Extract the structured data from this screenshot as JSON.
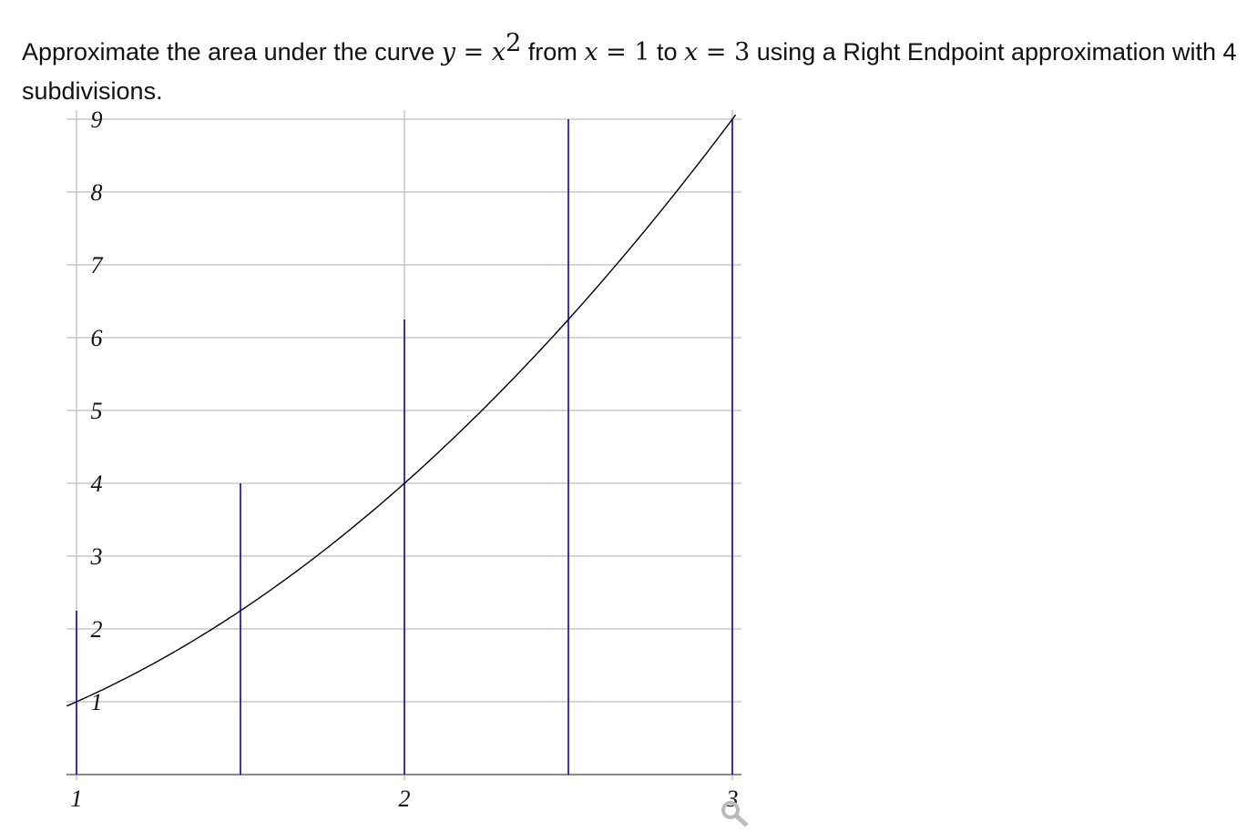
{
  "question": {
    "prefix": "Approximate the area under the curve ",
    "var_y": "y",
    "eq1": " = ",
    "var_x": "x",
    "exp": "2",
    "from": " from ",
    "x1": "x",
    "eq2": " = ",
    "a": "1",
    "to": " to ",
    "x2": "x",
    "eq3": " = ",
    "b": "3",
    "suffix": " using a Right Endpoint approximation with 4 subdivisions."
  },
  "chart_data": {
    "type": "line",
    "function": "y = x^2",
    "xlim": [
      1,
      3
    ],
    "ylim": [
      0,
      9
    ],
    "grid": true,
    "x_ticks": [
      "1",
      "2",
      "3"
    ],
    "y_ticks": [
      "1",
      "2",
      "3",
      "4",
      "5",
      "6",
      "7",
      "8",
      "9"
    ],
    "curve_color": "#000000",
    "segments_color": "#0000dd",
    "vertical_segments": [
      {
        "x": 1,
        "height": 2.25
      },
      {
        "x": 1.5,
        "height": 4
      },
      {
        "x": 2,
        "height": 6.25
      },
      {
        "x": 2.5,
        "height": 9
      },
      {
        "x": 3,
        "height": 9
      }
    ]
  },
  "icons": {
    "zoom": "magnifier-icon"
  }
}
